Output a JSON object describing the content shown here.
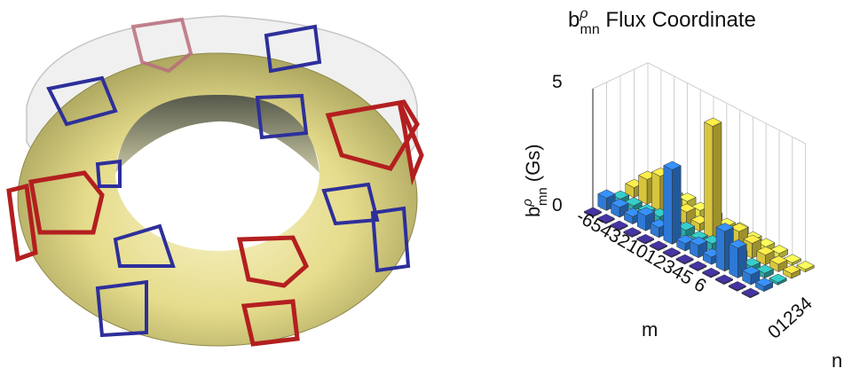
{
  "chart_data": {
    "type": "bar3d",
    "title_main": "b",
    "title_sup": "ρ",
    "title_sub": "mn",
    "title_rest": " Flux Coordinate",
    "zlabel_main": "b",
    "zlabel_sup": "ρ",
    "zlabel_sub": "mn",
    "zlabel_rest": " (Gs)",
    "xlabel": "m",
    "ylabel": "n",
    "zlim": [
      0,
      5
    ],
    "z_ticks": [
      "0",
      "5"
    ],
    "m_tick_text": "-654321012345 6",
    "n_tick_text": "01234",
    "m_values": [
      -6,
      -5,
      -4,
      -3,
      -2,
      -1,
      0,
      1,
      2,
      3,
      4,
      5,
      6
    ],
    "n_values": [
      0,
      1,
      2,
      3,
      4
    ],
    "series": [
      {
        "n": 0,
        "color": "#3b2d8f",
        "values": [
          0.05,
          0.05,
          0.05,
          0.05,
          0.05,
          0.05,
          0.05,
          0.05,
          0.05,
          0.05,
          0.05,
          0.05,
          0.05
        ]
      },
      {
        "n": 1,
        "color": "#2f7fe0",
        "values": [
          0.5,
          0.4,
          0.3,
          0.6,
          0.4,
          3.0,
          0.3,
          0.5,
          0.3,
          1.6,
          1.2,
          0.4,
          0.2
        ]
      },
      {
        "n": 2,
        "color": "#2eb3b0",
        "values": [
          0.2,
          0.2,
          0.2,
          0.3,
          0.2,
          0.3,
          0.2,
          0.3,
          0.2,
          0.4,
          0.2,
          0.2,
          0.1
        ]
      },
      {
        "n": 3,
        "color": "#e2cf3f",
        "values": [
          0.4,
          1.0,
          1.4,
          0.6,
          0.5,
          0.3,
          4.5,
          0.5,
          0.8,
          0.6,
          0.4,
          0.3,
          0.2
        ]
      },
      {
        "n": 4,
        "color": "#f3ee4f",
        "values": [
          0.3,
          0.3,
          0.3,
          0.4,
          0.3,
          0.3,
          0.2,
          0.3,
          0.2,
          0.2,
          0.2,
          0.1,
          0.1
        ]
      }
    ]
  }
}
